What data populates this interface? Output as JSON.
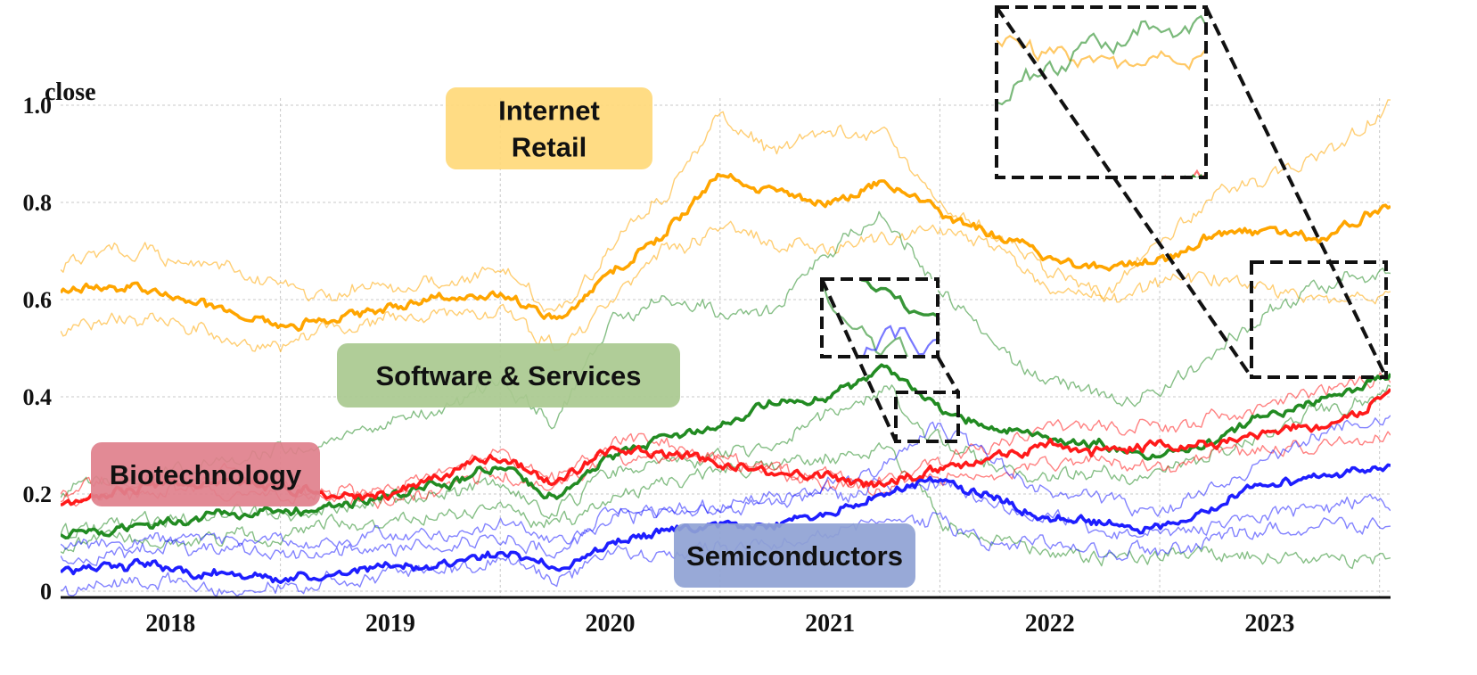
{
  "chart_data": {
    "type": "line",
    "title": "",
    "xlabel": "",
    "ylabel": "close",
    "xlim": [
      2017.5,
      2023.55
    ],
    "ylim": [
      0,
      1.0
    ],
    "x_ticks": [
      2018,
      2019,
      2020,
      2021,
      2022,
      2023
    ],
    "x_tick_labels": [
      "2018",
      "2019",
      "2020",
      "2021",
      "2022",
      "2023"
    ],
    "y_ticks": [
      0,
      0.2,
      0.4,
      0.6,
      0.8,
      1.0
    ],
    "y_tick_labels": [
      "0",
      "0.2",
      "0.4",
      "0.6",
      "0.8",
      "1.0"
    ],
    "grid": true,
    "groups": [
      {
        "name": "Internet Retail",
        "color": "#FFA500",
        "legend_fill": "#FFD97A"
      },
      {
        "name": "Software & Services",
        "color": "#228B22",
        "legend_fill": "#A9C98F"
      },
      {
        "name": "Biotechnology",
        "color": "#FF1A1A",
        "legend_fill": "#E0808C"
      },
      {
        "name": "Semiconductors",
        "color": "#1E1EFF",
        "legend_fill": "#8FA2D4"
      }
    ],
    "series": [
      {
        "name": "Internet Retail (mean)",
        "group": 0,
        "bold": true,
        "x": [
          2017.5,
          2017.75,
          2018,
          2018.25,
          2018.5,
          2018.75,
          2019,
          2019.25,
          2019.5,
          2019.75,
          2020,
          2020.25,
          2020.5,
          2020.75,
          2021,
          2021.25,
          2021.5,
          2021.75,
          2022,
          2022.25,
          2022.5,
          2022.75,
          2023,
          2023.25,
          2023.55
        ],
        "values": [
          0.61,
          0.63,
          0.61,
          0.58,
          0.55,
          0.56,
          0.58,
          0.6,
          0.61,
          0.55,
          0.65,
          0.74,
          0.86,
          0.82,
          0.8,
          0.84,
          0.78,
          0.74,
          0.68,
          0.66,
          0.68,
          0.74,
          0.74,
          0.72,
          0.8
        ]
      },
      {
        "name": "Internet Retail 2",
        "group": 0,
        "bold": false,
        "x": [
          2017.5,
          2017.75,
          2018,
          2018.25,
          2018.5,
          2018.75,
          2019,
          2019.25,
          2019.5,
          2019.75,
          2020,
          2020.25,
          2020.5,
          2020.75,
          2021,
          2021.25,
          2021.5,
          2021.75,
          2022,
          2022.25,
          2022.5,
          2022.75,
          2023,
          2023.25,
          2023.55
        ],
        "values": [
          0.65,
          0.7,
          0.68,
          0.67,
          0.62,
          0.6,
          0.62,
          0.63,
          0.66,
          0.56,
          0.72,
          0.82,
          0.99,
          0.9,
          0.96,
          0.93,
          0.8,
          0.74,
          0.66,
          0.62,
          0.72,
          0.82,
          0.85,
          0.9,
          1.0
        ]
      },
      {
        "name": "Internet Retail 3",
        "group": 0,
        "bold": false,
        "x": [
          2017.5,
          2017.75,
          2018,
          2018.25,
          2018.5,
          2018.75,
          2019,
          2019.25,
          2019.5,
          2019.75,
          2020,
          2020.25,
          2020.5,
          2020.75,
          2021,
          2021.25,
          2021.5,
          2021.75,
          2022,
          2022.25,
          2022.5,
          2022.75,
          2023,
          2023.25,
          2023.55
        ],
        "values": [
          0.53,
          0.56,
          0.55,
          0.53,
          0.51,
          0.54,
          0.56,
          0.58,
          0.59,
          0.51,
          0.61,
          0.7,
          0.74,
          0.72,
          0.72,
          0.72,
          0.74,
          0.7,
          0.63,
          0.6,
          0.62,
          0.66,
          0.62,
          0.6,
          0.6
        ]
      },
      {
        "name": "Software & Services (mean)",
        "group": 1,
        "bold": true,
        "x": [
          2017.5,
          2017.75,
          2018,
          2018.25,
          2018.5,
          2018.75,
          2019,
          2019.25,
          2019.5,
          2019.75,
          2020,
          2020.25,
          2020.5,
          2020.75,
          2021,
          2021.25,
          2021.5,
          2021.75,
          2022,
          2022.25,
          2022.5,
          2022.75,
          2023,
          2023.25,
          2023.55
        ],
        "values": [
          0.11,
          0.13,
          0.14,
          0.16,
          0.16,
          0.18,
          0.2,
          0.22,
          0.26,
          0.19,
          0.28,
          0.31,
          0.33,
          0.38,
          0.4,
          0.46,
          0.38,
          0.33,
          0.3,
          0.3,
          0.28,
          0.31,
          0.36,
          0.4,
          0.44
        ]
      },
      {
        "name": "Software & Services 2",
        "group": 1,
        "bold": false,
        "x": [
          2017.5,
          2017.75,
          2018,
          2018.25,
          2018.5,
          2018.75,
          2019,
          2019.25,
          2019.5,
          2019.75,
          2020,
          2020.25,
          2020.5,
          2020.75,
          2021,
          2021.25,
          2021.5,
          2021.75,
          2022,
          2022.25,
          2022.5,
          2022.75,
          2023,
          2023.25,
          2023.55
        ],
        "values": [
          0.2,
          0.22,
          0.24,
          0.27,
          0.29,
          0.31,
          0.34,
          0.38,
          0.44,
          0.34,
          0.55,
          0.6,
          0.57,
          0.58,
          0.7,
          0.8,
          0.62,
          0.5,
          0.44,
          0.4,
          0.42,
          0.5,
          0.58,
          0.62,
          0.66
        ]
      },
      {
        "name": "Software & Services 3",
        "group": 1,
        "bold": false,
        "x": [
          2017.5,
          2017.75,
          2018,
          2018.25,
          2018.5,
          2018.75,
          2019,
          2019.25,
          2019.5,
          2019.75,
          2020,
          2020.25,
          2020.5,
          2020.75,
          2021,
          2021.25,
          2021.5,
          2021.75,
          2022,
          2022.25,
          2022.5,
          2022.75,
          2023,
          2023.25,
          2023.55
        ],
        "values": [
          0.13,
          0.14,
          0.15,
          0.16,
          0.16,
          0.17,
          0.18,
          0.2,
          0.22,
          0.16,
          0.24,
          0.26,
          0.28,
          0.3,
          0.36,
          0.42,
          0.3,
          0.26,
          0.24,
          0.24,
          0.24,
          0.28,
          0.34,
          0.38,
          0.42
        ]
      },
      {
        "name": "Software & Services 4",
        "group": 1,
        "bold": false,
        "x": [
          2017.5,
          2017.75,
          2018,
          2018.25,
          2018.5,
          2018.75,
          2019,
          2019.25,
          2019.5,
          2019.75,
          2020,
          2020.25,
          2020.5,
          2020.75,
          2021,
          2021.25,
          2021.5,
          2021.75,
          2022,
          2022.25,
          2022.5,
          2022.75,
          2023,
          2023.25,
          2023.55
        ],
        "values": [
          0.09,
          0.1,
          0.11,
          0.12,
          0.12,
          0.13,
          0.14,
          0.16,
          0.18,
          0.13,
          0.2,
          0.22,
          0.24,
          0.26,
          0.28,
          0.3,
          0.14,
          0.1,
          0.09,
          0.08,
          0.08,
          0.08,
          0.07,
          0.06,
          0.06
        ]
      },
      {
        "name": "Biotechnology (mean)",
        "group": 2,
        "bold": true,
        "x": [
          2017.5,
          2017.75,
          2018,
          2018.25,
          2018.5,
          2018.75,
          2019,
          2019.25,
          2019.5,
          2019.75,
          2020,
          2020.25,
          2020.5,
          2020.75,
          2021,
          2021.25,
          2021.5,
          2021.75,
          2022,
          2022.25,
          2022.5,
          2022.75,
          2023,
          2023.25,
          2023.55
        ],
        "values": [
          0.18,
          0.21,
          0.22,
          0.22,
          0.21,
          0.2,
          0.2,
          0.24,
          0.27,
          0.22,
          0.3,
          0.29,
          0.27,
          0.25,
          0.23,
          0.22,
          0.25,
          0.27,
          0.3,
          0.29,
          0.3,
          0.3,
          0.33,
          0.34,
          0.4
        ]
      },
      {
        "name": "Biotechnology 2",
        "group": 2,
        "bold": false,
        "x": [
          2017.5,
          2017.75,
          2018,
          2018.25,
          2018.5,
          2018.75,
          2019,
          2019.25,
          2019.5,
          2019.75,
          2020,
          2020.25,
          2020.5,
          2020.75,
          2021,
          2021.25,
          2021.5,
          2021.75,
          2022,
          2022.25,
          2022.5,
          2022.75,
          2023,
          2023.25,
          2023.55
        ],
        "values": [
          0.2,
          0.22,
          0.24,
          0.24,
          0.22,
          0.21,
          0.22,
          0.26,
          0.29,
          0.24,
          0.31,
          0.3,
          0.28,
          0.26,
          0.24,
          0.23,
          0.27,
          0.3,
          0.33,
          0.33,
          0.34,
          0.36,
          0.38,
          0.4,
          0.43
        ]
      },
      {
        "name": "Biotechnology 3",
        "group": 2,
        "bold": false,
        "x": [
          2017.5,
          2017.75,
          2018,
          2018.25,
          2018.5,
          2018.75,
          2019,
          2019.25,
          2019.5,
          2019.75,
          2020,
          2020.25,
          2020.5,
          2020.75,
          2021,
          2021.25,
          2021.5,
          2021.75,
          2022,
          2022.25,
          2022.5,
          2022.75,
          2023,
          2023.25,
          2023.55
        ],
        "values": [
          0.19,
          0.2,
          0.21,
          0.21,
          0.2,
          0.19,
          0.19,
          0.22,
          0.25,
          0.21,
          0.28,
          0.27,
          0.26,
          0.24,
          0.22,
          0.21,
          0.23,
          0.25,
          0.27,
          0.26,
          0.27,
          0.28,
          0.3,
          0.3,
          0.33
        ]
      },
      {
        "name": "Semiconductors (mean)",
        "group": 3,
        "bold": true,
        "x": [
          2017.5,
          2017.75,
          2018,
          2018.25,
          2018.5,
          2018.75,
          2019,
          2019.25,
          2019.5,
          2019.75,
          2020,
          2020.25,
          2020.5,
          2020.75,
          2021,
          2021.25,
          2021.5,
          2021.75,
          2022,
          2022.25,
          2022.5,
          2022.75,
          2023,
          2023.25,
          2023.55
        ],
        "values": [
          0.04,
          0.05,
          0.05,
          0.04,
          0.03,
          0.04,
          0.05,
          0.06,
          0.08,
          0.05,
          0.1,
          0.12,
          0.13,
          0.14,
          0.16,
          0.2,
          0.23,
          0.18,
          0.15,
          0.14,
          0.13,
          0.18,
          0.22,
          0.24,
          0.26
        ]
      },
      {
        "name": "Semiconductors 2",
        "group": 3,
        "bold": false,
        "x": [
          2017.5,
          2017.75,
          2018,
          2018.25,
          2018.5,
          2018.75,
          2019,
          2019.25,
          2019.5,
          2019.75,
          2020,
          2020.25,
          2020.5,
          2020.75,
          2021,
          2021.25,
          2021.5,
          2021.75,
          2022,
          2022.25,
          2022.5,
          2022.75,
          2023,
          2023.25,
          2023.55
        ],
        "values": [
          0.07,
          0.08,
          0.09,
          0.08,
          0.07,
          0.08,
          0.09,
          0.1,
          0.12,
          0.08,
          0.14,
          0.16,
          0.18,
          0.19,
          0.21,
          0.26,
          0.34,
          0.26,
          0.2,
          0.18,
          0.17,
          0.22,
          0.28,
          0.32,
          0.36
        ]
      },
      {
        "name": "Semiconductors 3",
        "group": 3,
        "bold": false,
        "x": [
          2017.5,
          2017.75,
          2018,
          2018.25,
          2018.5,
          2018.75,
          2019,
          2019.25,
          2019.5,
          2019.75,
          2020,
          2020.25,
          2020.5,
          2020.75,
          2021,
          2021.25,
          2021.5,
          2021.75,
          2022,
          2022.25,
          2022.5,
          2022.75,
          2023,
          2023.25,
          2023.55
        ],
        "values": [
          0.1,
          0.11,
          0.12,
          0.11,
          0.1,
          0.1,
          0.11,
          0.12,
          0.14,
          0.1,
          0.15,
          0.16,
          0.18,
          0.18,
          0.2,
          0.22,
          0.22,
          0.17,
          0.14,
          0.13,
          0.12,
          0.14,
          0.16,
          0.17,
          0.19
        ]
      },
      {
        "name": "Semiconductors 4",
        "group": 3,
        "bold": false,
        "x": [
          2017.5,
          2017.75,
          2018,
          2018.25,
          2018.5,
          2018.75,
          2019,
          2019.25,
          2019.5,
          2019.75,
          2020,
          2020.25,
          2020.5,
          2020.75,
          2021,
          2021.25,
          2021.5,
          2021.75,
          2022,
          2022.25,
          2022.5,
          2022.75,
          2023,
          2023.25,
          2023.55
        ],
        "values": [
          0.0,
          0.01,
          0.01,
          0.01,
          0.01,
          0.02,
          0.03,
          0.04,
          0.05,
          0.03,
          0.07,
          0.08,
          0.09,
          0.1,
          0.12,
          0.15,
          0.14,
          0.11,
          0.09,
          0.08,
          0.08,
          0.1,
          0.12,
          0.13,
          0.15
        ]
      }
    ],
    "legend": [
      {
        "label_lines": [
          "Internet",
          "Retail"
        ],
        "group": 0
      },
      {
        "label_lines": [
          "Software & Services"
        ],
        "group": 1
      },
      {
        "label_lines": [
          "Biotechnology"
        ],
        "group": 2
      },
      {
        "label_lines": [
          "Semiconductors"
        ],
        "group": 3
      }
    ],
    "zoom_insets": [
      {
        "name": "zoom-inset-2021",
        "region_x": [
          2021.2,
          2021.4
        ],
        "region_y": [
          0.32,
          0.4
        ]
      },
      {
        "name": "zoom-inset-2023",
        "region_x": [
          2022.9,
          2023.5
        ],
        "region_y": [
          0.44,
          0.68
        ]
      }
    ]
  }
}
